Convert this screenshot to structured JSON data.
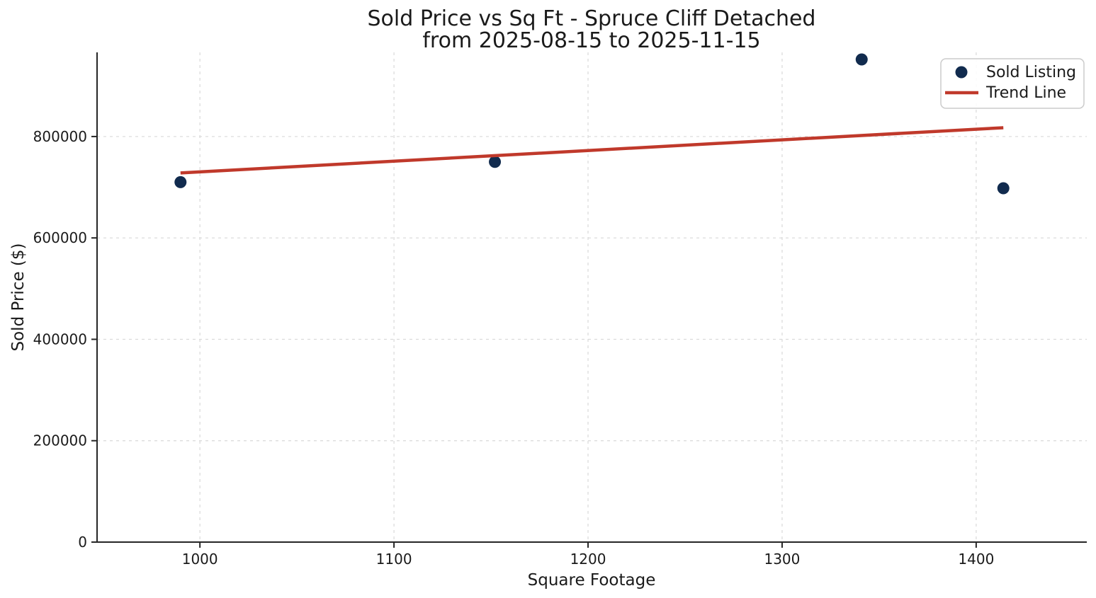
{
  "chart_data": {
    "type": "scatter",
    "title": "Sold Price vs Sq Ft - Spruce Cliff Detached",
    "subtitle": "from 2025-08-15 to 2025-11-15",
    "xlabel": "Square Footage",
    "ylabel": "Sold Price ($)",
    "xlim": [
      947,
      1457
    ],
    "ylim": [
      0,
      966000
    ],
    "x_ticks": [
      1000,
      1100,
      1200,
      1300,
      1400
    ],
    "y_ticks": [
      0,
      200000,
      400000,
      600000,
      800000
    ],
    "grid": true,
    "grid_style": "dashed",
    "legend": {
      "position": "upper right",
      "entries": [
        {
          "label": "Sold Listing",
          "type": "marker"
        },
        {
          "label": "Trend Line",
          "type": "line"
        }
      ]
    },
    "series": [
      {
        "name": "Sold Listing",
        "type": "scatter",
        "points": [
          {
            "x": 990,
            "y": 710000
          },
          {
            "x": 1152,
            "y": 750000
          },
          {
            "x": 1341,
            "y": 952000
          },
          {
            "x": 1414,
            "y": 698000
          }
        ]
      },
      {
        "name": "Trend Line",
        "type": "line",
        "points": [
          {
            "x": 990,
            "y": 728200
          },
          {
            "x": 1414,
            "y": 817400
          }
        ]
      }
    ],
    "colors": {
      "marker": "#112b4e",
      "trend": "#c0392b",
      "grid": "#d9d9d9",
      "spine": "#262626",
      "text": "#1a1a1a",
      "legend_border": "#cccccc",
      "legend_fill": "#ffffff"
    }
  }
}
